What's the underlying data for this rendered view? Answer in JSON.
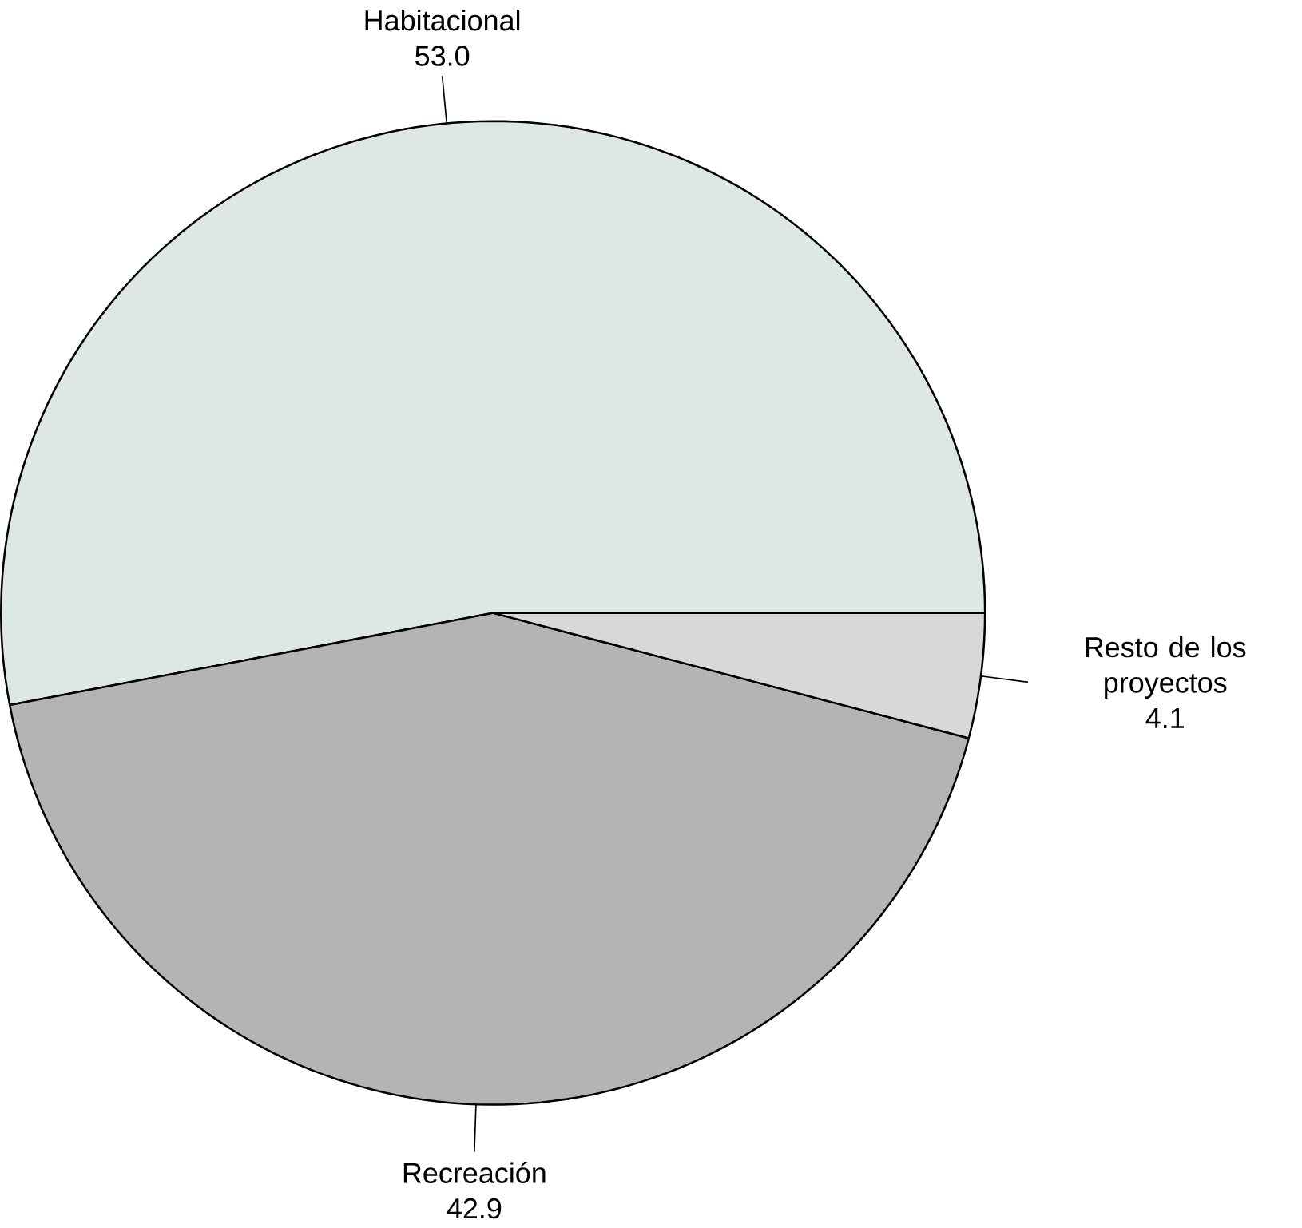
{
  "chart_data": {
    "type": "pie",
    "categories": [
      "Habitacional",
      "Recreación",
      "Resto de los proyectos"
    ],
    "values": [
      53.0,
      42.9,
      4.1
    ],
    "colors": [
      "#dde8e4",
      "#b4b4b4",
      "#d8d8d8"
    ],
    "value_labels": [
      "53.0",
      "42.9",
      "4.1"
    ]
  }
}
